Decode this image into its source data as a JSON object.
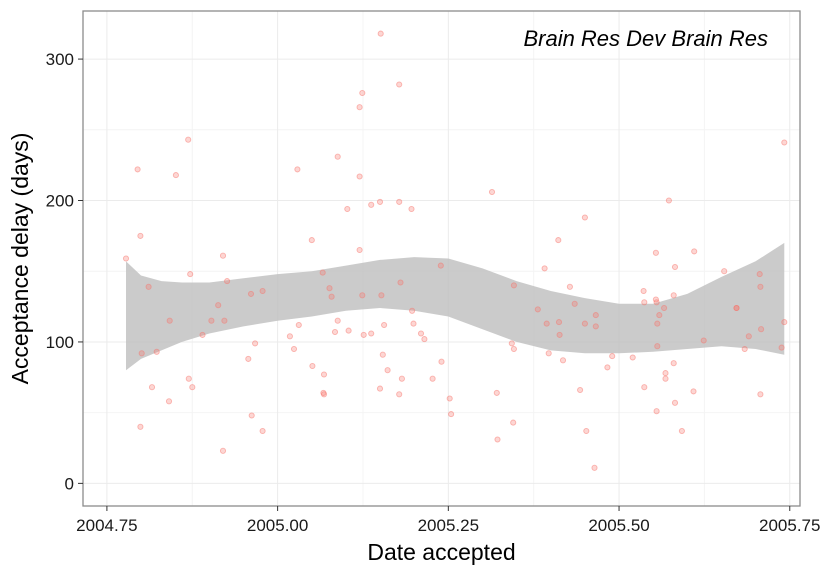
{
  "chart_data": {
    "type": "scatter",
    "title": "",
    "annotation": "Brain Res Dev Brain Res",
    "xlabel": "Date accepted",
    "ylabel": "Acceptance delay (days)",
    "xlim": [
      2004.715,
      2005.765
    ],
    "ylim": [
      -16,
      334
    ],
    "x_ticks": [
      2004.75,
      2005.0,
      2005.25,
      2005.5,
      2005.75
    ],
    "x_tick_labels": [
      "2004.75",
      "2005.00",
      "2005.25",
      "2005.50",
      "2005.75"
    ],
    "y_ticks": [
      0,
      100,
      200,
      300
    ],
    "y_tick_labels": [
      "0",
      "100",
      "200",
      "300"
    ],
    "grid": true,
    "colors": {
      "points": "#f8766d",
      "band": "#bebebe",
      "panel_border": "#8c8c8c",
      "grid": "#ebebeb"
    },
    "points": [
      [
        2004.778,
        159
      ],
      [
        2004.795,
        222
      ],
      [
        2004.799,
        175
      ],
      [
        2004.801,
        92
      ],
      [
        2004.799,
        40
      ],
      [
        2004.811,
        139
      ],
      [
        2004.816,
        68
      ],
      [
        2004.823,
        93
      ],
      [
        2004.842,
        115
      ],
      [
        2004.841,
        58
      ],
      [
        2004.851,
        218
      ],
      [
        2004.869,
        243
      ],
      [
        2004.87,
        74
      ],
      [
        2004.872,
        148
      ],
      [
        2004.875,
        68
      ],
      [
        2004.89,
        105
      ],
      [
        2004.903,
        115
      ],
      [
        2004.913,
        126
      ],
      [
        2004.92,
        161
      ],
      [
        2004.922,
        115
      ],
      [
        2004.92,
        23
      ],
      [
        2004.926,
        143
      ],
      [
        2004.957,
        88
      ],
      [
        2004.961,
        134
      ],
      [
        2004.962,
        48
      ],
      [
        2004.967,
        99
      ],
      [
        2004.978,
        136
      ],
      [
        2004.978,
        37
      ],
      [
        2005.018,
        104
      ],
      [
        2005.024,
        95
      ],
      [
        2005.029,
        222
      ],
      [
        2005.031,
        112
      ],
      [
        2005.05,
        172
      ],
      [
        2005.051,
        83
      ],
      [
        2005.066,
        149
      ],
      [
        2005.068,
        77
      ],
      [
        2005.067,
        64
      ],
      [
        2005.068,
        63
      ],
      [
        2005.076,
        138
      ],
      [
        2005.079,
        132
      ],
      [
        2005.084,
        107
      ],
      [
        2005.088,
        231
      ],
      [
        2005.088,
        115
      ],
      [
        2005.102,
        194
      ],
      [
        2005.104,
        108
      ],
      [
        2005.12,
        266
      ],
      [
        2005.12,
        217
      ],
      [
        2005.12,
        165
      ],
      [
        2005.124,
        276
      ],
      [
        2005.124,
        133
      ],
      [
        2005.126,
        105
      ],
      [
        2005.137,
        197
      ],
      [
        2005.137,
        106
      ],
      [
        2005.151,
        318
      ],
      [
        2005.15,
        199
      ],
      [
        2005.152,
        133
      ],
      [
        2005.15,
        67
      ],
      [
        2005.154,
        91
      ],
      [
        2005.156,
        112
      ],
      [
        2005.161,
        80
      ],
      [
        2005.178,
        282
      ],
      [
        2005.178,
        199
      ],
      [
        2005.178,
        63
      ],
      [
        2005.18,
        142
      ],
      [
        2005.182,
        74
      ],
      [
        2005.196,
        194
      ],
      [
        2005.197,
        122
      ],
      [
        2005.199,
        113
      ],
      [
        2005.21,
        106
      ],
      [
        2005.215,
        102
      ],
      [
        2005.227,
        74
      ],
      [
        2005.239,
        154
      ],
      [
        2005.24,
        86
      ],
      [
        2005.252,
        60
      ],
      [
        2005.254,
        49
      ],
      [
        2005.314,
        206
      ],
      [
        2005.321,
        64
      ],
      [
        2005.322,
        31
      ],
      [
        2005.343,
        99
      ],
      [
        2005.345,
        43
      ],
      [
        2005.346,
        95
      ],
      [
        2005.346,
        140
      ],
      [
        2005.381,
        123
      ],
      [
        2005.391,
        152
      ],
      [
        2005.394,
        113
      ],
      [
        2005.397,
        92
      ],
      [
        2005.411,
        172
      ],
      [
        2005.412,
        114
      ],
      [
        2005.413,
        105
      ],
      [
        2005.418,
        87
      ],
      [
        2005.428,
        139
      ],
      [
        2005.435,
        127
      ],
      [
        2005.443,
        66
      ],
      [
        2005.45,
        188
      ],
      [
        2005.45,
        113
      ],
      [
        2005.452,
        37
      ],
      [
        2005.464,
        11
      ],
      [
        2005.466,
        119
      ],
      [
        2005.466,
        111
      ],
      [
        2005.483,
        82
      ],
      [
        2005.49,
        90
      ],
      [
        2005.52,
        89
      ],
      [
        2005.536,
        136
      ],
      [
        2005.537,
        128
      ],
      [
        2005.537,
        68
      ],
      [
        2005.554,
        163
      ],
      [
        2005.554,
        130
      ],
      [
        2005.555,
        128
      ],
      [
        2005.556,
        113
      ],
      [
        2005.556,
        97
      ],
      [
        2005.555,
        51
      ],
      [
        2005.559,
        119
      ],
      [
        2005.566,
        124
      ],
      [
        2005.568,
        78
      ],
      [
        2005.568,
        74
      ],
      [
        2005.573,
        200
      ],
      [
        2005.58,
        85
      ],
      [
        2005.58,
        133
      ],
      [
        2005.582,
        153
      ],
      [
        2005.582,
        57
      ],
      [
        2005.592,
        37
      ],
      [
        2005.61,
        164
      ],
      [
        2005.609,
        65
      ],
      [
        2005.624,
        101
      ],
      [
        2005.654,
        150
      ],
      [
        2005.672,
        124
      ],
      [
        2005.672,
        124
      ],
      [
        2005.684,
        95
      ],
      [
        2005.69,
        104
      ],
      [
        2005.706,
        148
      ],
      [
        2005.707,
        139
      ],
      [
        2005.708,
        109
      ],
      [
        2005.707,
        63
      ],
      [
        2005.738,
        96
      ],
      [
        2005.742,
        241
      ],
      [
        2005.742,
        114
      ]
    ],
    "smooth_band": {
      "x": [
        2004.778,
        2004.8,
        2004.83,
        2004.86,
        2004.9,
        2004.95,
        2005.0,
        2005.05,
        2005.1,
        2005.15,
        2005.2,
        2005.25,
        2005.3,
        2005.35,
        2005.4,
        2005.45,
        2005.5,
        2005.55,
        2005.6,
        2005.65,
        2005.7,
        2005.742
      ],
      "upper": [
        157,
        147,
        143,
        142,
        142,
        145,
        148,
        150,
        154,
        158,
        160,
        159,
        152,
        143,
        136,
        131,
        127,
        127,
        134,
        146,
        157,
        170
      ],
      "lower": [
        80,
        88,
        94,
        100,
        106,
        111,
        115,
        118,
        122,
        124,
        122,
        118,
        109,
        100,
        94,
        92,
        92,
        93,
        95,
        97,
        95,
        91
      ]
    }
  }
}
